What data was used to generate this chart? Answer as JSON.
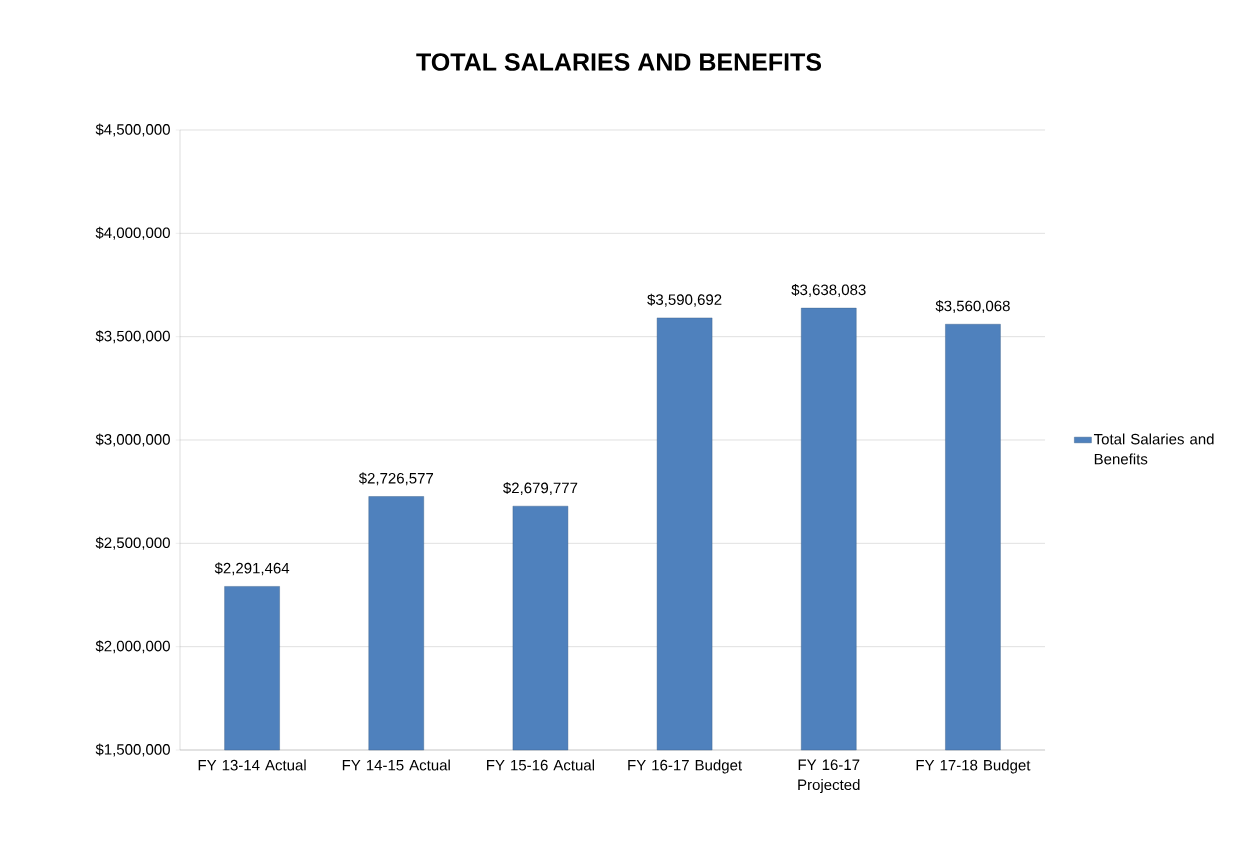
{
  "chart_data": {
    "type": "bar",
    "title": "TOTAL SALARIES AND BENEFITS",
    "categories": [
      "FY 13-14 Actual",
      "FY 14-15 Actual",
      "FY 15-16 Actual",
      "FY 16-17 Budget",
      "FY 16-17 Projected",
      "FY 17-18 Budget"
    ],
    "series": [
      {
        "name": "Total Salaries and Benefits",
        "color": "#4f81bd",
        "values": [
          2291464,
          2726577,
          2679777,
          3590692,
          3638083,
          3560068
        ],
        "value_labels": [
          "$2,291,464",
          "$2,726,577",
          "$2,679,777",
          "$3,590,692",
          "$3,638,083",
          "$3,560,068"
        ]
      }
    ],
    "ylim": [
      1500000,
      4500000
    ],
    "yticks": [
      {
        "value": 1500000,
        "label": "$1,500,000"
      },
      {
        "value": 2000000,
        "label": "$2,000,000"
      },
      {
        "value": 2500000,
        "label": "$2,500,000"
      },
      {
        "value": 3000000,
        "label": "$3,000,000"
      },
      {
        "value": 3500000,
        "label": "$3,500,000"
      },
      {
        "value": 4000000,
        "label": "$4,000,000"
      },
      {
        "value": 4500000,
        "label": "$4,500,000"
      }
    ],
    "grid": "y",
    "legend": "right"
  }
}
